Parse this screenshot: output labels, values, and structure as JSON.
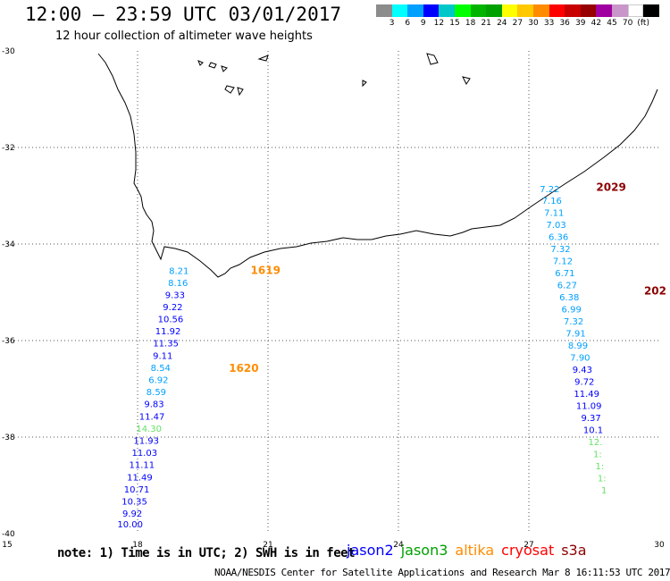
{
  "header": {
    "title": "12:00 – 23:59 UTC 03/01/2017",
    "subtitle": "12 hour collection of altimeter wave heights"
  },
  "color_scale": {
    "colors": [
      "#8c8c8c",
      "#00ffff",
      "#00a0ff",
      "#0000ff",
      "#00c8c8",
      "#00ff00",
      "#00b400",
      "#00a000",
      "#ffff00",
      "#ffc800",
      "#ff8c00",
      "#ff0000",
      "#c80000",
      "#960000",
      "#a000a0",
      "#c896c8",
      "#ffffff",
      "#000000"
    ],
    "labels": [
      "3",
      "6",
      "9",
      "12",
      "15",
      "18",
      "21",
      "24",
      "27",
      "30",
      "33",
      "36",
      "39",
      "42",
      "45",
      "70",
      "(ft)"
    ]
  },
  "footer": {
    "note": "note: 1) Time is in UTC; 2) SWH is in feet",
    "satellites": [
      {
        "name": "jason2",
        "color": "#0000ff"
      },
      {
        "name": "jason3",
        "color": "#00a000"
      },
      {
        "name": "altika",
        "color": "#ff8c00"
      },
      {
        "name": "cryosat",
        "color": "#ff0000"
      },
      {
        "name": "s3a",
        "color": "#8b0000"
      }
    ],
    "credit": "NOAA/NESDIS Center for Satellite Applications and Research    Mar  8 16:11:53 UTC 2017"
  },
  "chart_data": {
    "type": "scatter",
    "title": "12:00 – 23:59 UTC 03/01/2017",
    "subtitle": "12 hour collection of altimeter wave heights",
    "xlim": [
      15,
      30
    ],
    "ylim": [
      -40,
      -30
    ],
    "x_ticks": [
      "15",
      "18",
      "21",
      "24",
      "27",
      "30"
    ],
    "y_ticks": [
      "-30",
      "-32",
      "-34",
      "-36",
      "-38",
      "-40"
    ],
    "grid": "dotted",
    "annotations": [
      {
        "text": "1619",
        "lon": 20.6,
        "lat": -34.62,
        "color": "#ff8c00"
      },
      {
        "text": "1620",
        "lon": 20.1,
        "lat": -36.65,
        "color": "#ff8c00"
      },
      {
        "text": "2029",
        "lon": 28.55,
        "lat": -32.9,
        "color": "#8b0000"
      },
      {
        "text": "202",
        "lon": 29.65,
        "lat": -35.05,
        "color": "#8b0000"
      }
    ],
    "series": [
      {
        "name": "altika",
        "points": [
          {
            "lon": 18.95,
            "lat": -34.62,
            "swh": "8.21",
            "color": "#00a0ff"
          },
          {
            "lon": 18.93,
            "lat": -34.87,
            "swh": "8.16",
            "color": "#00a0ff"
          },
          {
            "lon": 18.86,
            "lat": -35.12,
            "swh": "9.33",
            "color": "#0000ff"
          },
          {
            "lon": 18.81,
            "lat": -35.37,
            "swh": "9.22",
            "color": "#0000ff"
          },
          {
            "lon": 18.76,
            "lat": -35.62,
            "swh": "10.56",
            "color": "#0000ff"
          },
          {
            "lon": 18.7,
            "lat": -35.87,
            "swh": "11.92",
            "color": "#0000ff"
          },
          {
            "lon": 18.65,
            "lat": -36.12,
            "swh": "11.35",
            "color": "#0000ff"
          },
          {
            "lon": 18.58,
            "lat": -36.38,
            "swh": "9.11",
            "color": "#0000ff"
          },
          {
            "lon": 18.53,
            "lat": -36.63,
            "swh": "8.54",
            "color": "#00a0ff"
          },
          {
            "lon": 18.48,
            "lat": -36.88,
            "swh": "6.92",
            "color": "#00a0ff"
          },
          {
            "lon": 18.43,
            "lat": -37.13,
            "swh": "8.59",
            "color": "#00a0ff"
          },
          {
            "lon": 18.38,
            "lat": -37.38,
            "swh": "9.83",
            "color": "#0000ff"
          },
          {
            "lon": 18.33,
            "lat": -37.64,
            "swh": "11.47",
            "color": "#0000ff"
          },
          {
            "lon": 18.26,
            "lat": -37.89,
            "swh": "14.30",
            "color": "#66e066"
          },
          {
            "lon": 18.2,
            "lat": -38.14,
            "swh": "11.93",
            "color": "#0000ff"
          },
          {
            "lon": 18.16,
            "lat": -38.39,
            "swh": "11.03",
            "color": "#0000ff"
          },
          {
            "lon": 18.1,
            "lat": -38.64,
            "swh": "11.11",
            "color": "#0000ff"
          },
          {
            "lon": 18.05,
            "lat": -38.9,
            "swh": "11.49",
            "color": "#0000ff"
          },
          {
            "lon": 17.98,
            "lat": -39.15,
            "swh": "10.71",
            "color": "#0000ff"
          },
          {
            "lon": 17.93,
            "lat": -39.4,
            "swh": "10.35",
            "color": "#0000ff"
          },
          {
            "lon": 17.88,
            "lat": -39.65,
            "swh": "9.92",
            "color": "#0000ff"
          },
          {
            "lon": 17.83,
            "lat": -39.87,
            "swh": "10.00",
            "color": "#0000ff"
          }
        ]
      },
      {
        "name": "s3a",
        "points": [
          {
            "lon": 27.48,
            "lat": -32.93,
            "swh": "7.22",
            "color": "#00a0ff"
          },
          {
            "lon": 27.53,
            "lat": -33.17,
            "swh": "7.16",
            "color": "#00a0ff"
          },
          {
            "lon": 27.58,
            "lat": -33.42,
            "swh": "7.11",
            "color": "#00a0ff"
          },
          {
            "lon": 27.63,
            "lat": -33.67,
            "swh": "7.03",
            "color": "#00a0ff"
          },
          {
            "lon": 27.68,
            "lat": -33.92,
            "swh": "6.36",
            "color": "#00a0ff"
          },
          {
            "lon": 27.73,
            "lat": -34.17,
            "swh": "7.32",
            "color": "#00a0ff"
          },
          {
            "lon": 27.78,
            "lat": -34.42,
            "swh": "7.12",
            "color": "#00a0ff"
          },
          {
            "lon": 27.83,
            "lat": -34.67,
            "swh": "6.71",
            "color": "#00a0ff"
          },
          {
            "lon": 27.88,
            "lat": -34.92,
            "swh": "6.27",
            "color": "#00a0ff"
          },
          {
            "lon": 27.93,
            "lat": -35.17,
            "swh": "6.38",
            "color": "#00a0ff"
          },
          {
            "lon": 27.98,
            "lat": -35.42,
            "swh": "6.99",
            "color": "#00a0ff"
          },
          {
            "lon": 28.03,
            "lat": -35.67,
            "swh": "7.32",
            "color": "#00a0ff"
          },
          {
            "lon": 28.08,
            "lat": -35.92,
            "swh": "7.91",
            "color": "#00a0ff"
          },
          {
            "lon": 28.13,
            "lat": -36.17,
            "swh": "8.99",
            "color": "#00a0ff"
          },
          {
            "lon": 28.18,
            "lat": -36.42,
            "swh": "7.90",
            "color": "#00a0ff"
          },
          {
            "lon": 28.23,
            "lat": -36.67,
            "swh": "9.43",
            "color": "#0000ff"
          },
          {
            "lon": 28.28,
            "lat": -36.92,
            "swh": "9.72",
            "color": "#0000ff"
          },
          {
            "lon": 28.33,
            "lat": -37.17,
            "swh": "11.49",
            "color": "#0000ff"
          },
          {
            "lon": 28.38,
            "lat": -37.42,
            "swh": "11.09",
            "color": "#0000ff"
          },
          {
            "lon": 28.43,
            "lat": -37.67,
            "swh": "9.37",
            "color": "#0000ff"
          },
          {
            "lon": 28.48,
            "lat": -37.92,
            "swh": "10.1",
            "color": "#0000ff"
          },
          {
            "lon": 28.53,
            "lat": -38.17,
            "swh": "12.",
            "color": "#66e066"
          },
          {
            "lon": 28.58,
            "lat": -38.42,
            "swh": "1:",
            "color": "#66e066"
          },
          {
            "lon": 28.63,
            "lat": -38.67,
            "swh": "1:",
            "color": "#66e066"
          },
          {
            "lon": 28.68,
            "lat": -38.92,
            "swh": "1:",
            "color": "#66e066"
          },
          {
            "lon": 28.73,
            "lat": -39.17,
            "swh": "1",
            "color": "#66e066"
          }
        ]
      }
    ]
  }
}
